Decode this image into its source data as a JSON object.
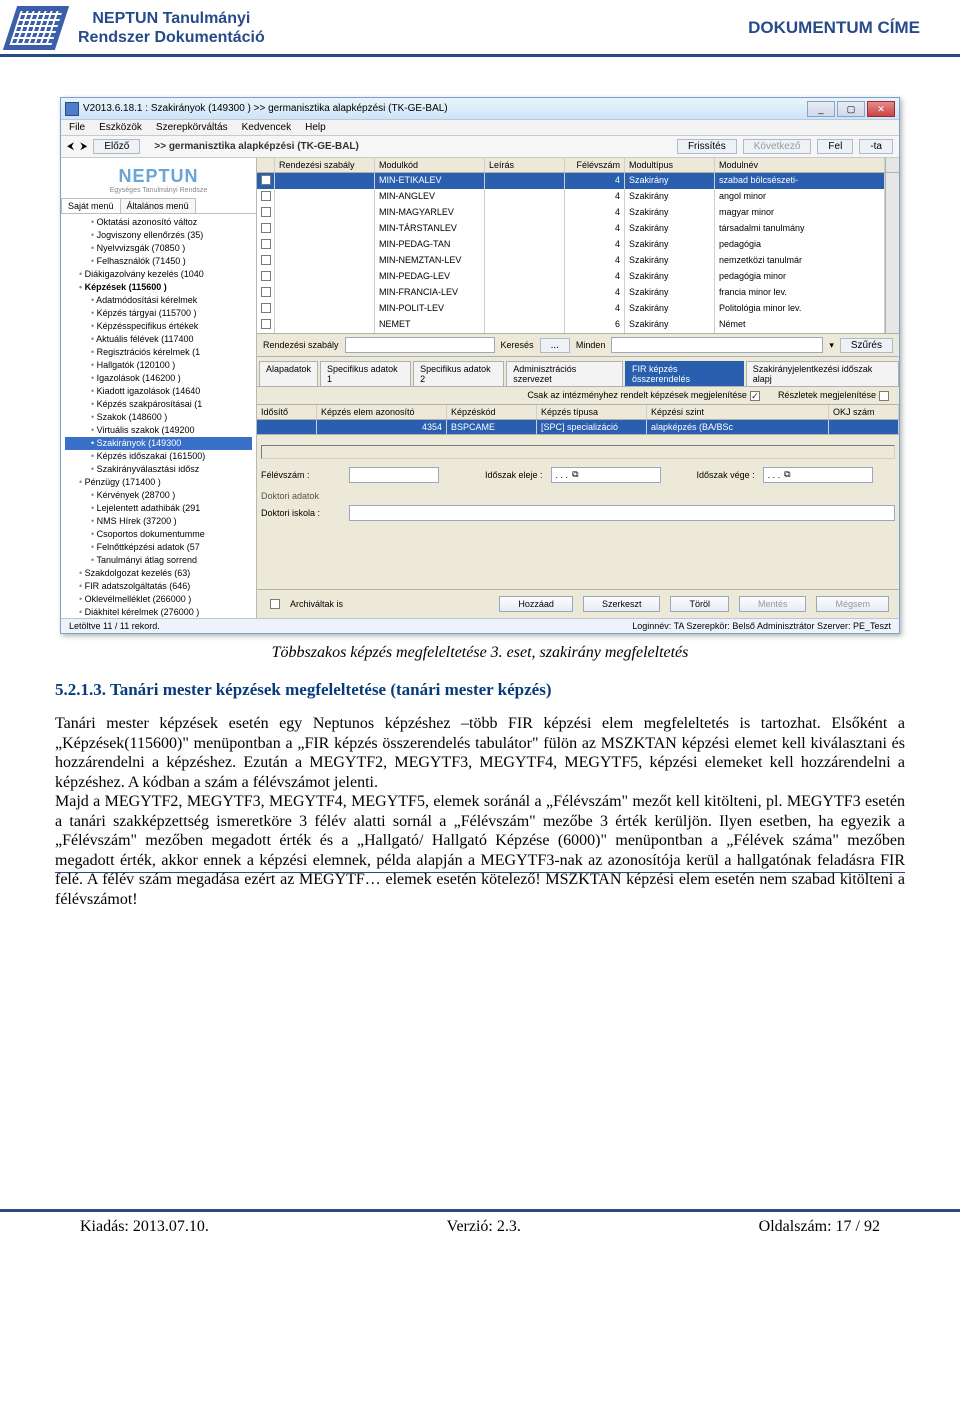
{
  "header": {
    "left_line1": "NEPTUN Tanulmányi",
    "left_line2": "Rendszer Dokumentáció",
    "right": "DOKUMENTUM CÍME"
  },
  "app": {
    "title": "V2013.6.18.1 : Szakirányok (149300 ) >> germanisztika alapképzési (TK-GE-BAL)",
    "menu": [
      "File",
      "Eszközök",
      "Szerepkörváltás",
      "Kedvencek",
      "Help"
    ],
    "nav": {
      "prev": "Előző",
      "crumb": ">> germanisztika alapképzési (TK-GE-BAL)",
      "refresh": "Frissítés",
      "next": "Következő",
      "up": "Fel",
      "pin": "-ta"
    },
    "logo": {
      "name": "NEPTUN",
      "sub": "Egységes Tanulmányi Rendsze"
    },
    "left_tabs": {
      "t1": "Saját menü",
      "t2": "Általános menü"
    },
    "tree": [
      {
        "label": "Oktatási azonosító változ",
        "ind": 2
      },
      {
        "label": "Jogviszony ellenőrzés (35)",
        "ind": 2
      },
      {
        "label": "Nyelvvizsgák (70850 )",
        "ind": 2
      },
      {
        "label": "Felhasználók (71450 )",
        "ind": 2
      },
      {
        "label": "Diákigazolvány kezelés (1040",
        "ind": 1
      },
      {
        "label": "Képzések (115600 )",
        "ind": 1,
        "b": true
      },
      {
        "label": "Adatmódosítási kérelmek",
        "ind": 2
      },
      {
        "label": "Képzés tárgyai (115700 )",
        "ind": 2
      },
      {
        "label": "Képzésspecifikus értékek",
        "ind": 2
      },
      {
        "label": "Aktuális félévek (117400",
        "ind": 2
      },
      {
        "label": "Regisztrációs kérelmek (1",
        "ind": 2
      },
      {
        "label": "Hallgatók (120100 )",
        "ind": 2
      },
      {
        "label": "Igazolások (146200 )",
        "ind": 2
      },
      {
        "label": "Kiadott igazolások (14640",
        "ind": 2
      },
      {
        "label": "Képzés szakpárosításai (1",
        "ind": 2
      },
      {
        "label": "Szakok (148600 )",
        "ind": 2
      },
      {
        "label": "Virtuális szakok (149200",
        "ind": 2
      },
      {
        "label": "Szakirányok (149300",
        "ind": 2,
        "sel": true
      },
      {
        "label": "Képzés időszakai (161500)",
        "ind": 2
      },
      {
        "label": "Szakirányválasztási idősz",
        "ind": 2
      },
      {
        "label": "Pénzügy (171400 )",
        "ind": 1
      },
      {
        "label": "Kérvények (28700 )",
        "ind": 2
      },
      {
        "label": "Lejelentett adathibák (291",
        "ind": 2
      },
      {
        "label": "NMS Hírek (37200 )",
        "ind": 2
      },
      {
        "label": "Csoportos dokumentumme",
        "ind": 2
      },
      {
        "label": "Felnőttképzési adatok (57",
        "ind": 2
      },
      {
        "label": "Tanulmányi átlag sorrend",
        "ind": 2
      },
      {
        "label": "Szakdolgozat kezelés (63)",
        "ind": 1
      },
      {
        "label": "FIR adatszolgáltatás (646)",
        "ind": 1
      },
      {
        "label": "Oklevélmelléklet (266000 )",
        "ind": 1
      },
      {
        "label": "Diákhitel kérelmek (276000 )",
        "ind": 1
      }
    ],
    "grid": {
      "cols": [
        "",
        "Rendezési szabály",
        "Modulkód",
        "Leírás",
        "Félévszám",
        "Modultípus",
        "Modulnév"
      ],
      "rows": [
        {
          "c2": "MIN-ETIKALEV",
          "c3": "",
          "c4": "4",
          "c5": "Szakirány",
          "c6": "szabad bölcsészeti-",
          "sel": true
        },
        {
          "c2": "MIN-ANGLEV",
          "c3": "",
          "c4": "4",
          "c5": "Szakirány",
          "c6": "angol minor"
        },
        {
          "c2": "MIN-MAGYARLEV",
          "c3": "",
          "c4": "4",
          "c5": "Szakirány",
          "c6": "magyar minor"
        },
        {
          "c2": "MIN-TÁRSTANLEV",
          "c3": "",
          "c4": "4",
          "c5": "Szakirány",
          "c6": "társadalmi tanulmány"
        },
        {
          "c2": "MIN-PEDAG-TAN",
          "c3": "",
          "c4": "4",
          "c5": "Szakirány",
          "c6": "pedagógia"
        },
        {
          "c2": "MIN-NEMZTAN-LEV",
          "c3": "",
          "c4": "4",
          "c5": "Szakirány",
          "c6": "nemzetközi tanulmár"
        },
        {
          "c2": "MIN-PEDAG-LEV",
          "c3": "",
          "c4": "4",
          "c5": "Szakirány",
          "c6": "pedagógia minor"
        },
        {
          "c2": "MIN-FRANCIA-LEV",
          "c3": "",
          "c4": "4",
          "c5": "Szakirány",
          "c6": "francia minor lev."
        },
        {
          "c2": "MIN-POLIT-LEV",
          "c3": "",
          "c4": "4",
          "c5": "Szakirány",
          "c6": "Politológia minor lev."
        },
        {
          "c2": "NEMET",
          "c3": "",
          "c4": "6",
          "c5": "Szakirány",
          "c6": "Német"
        }
      ]
    },
    "search": {
      "label": "Rendezési szabály",
      "keres": "Keresés",
      "dots": "...",
      "minden": "Minden",
      "szures": "Szűrés"
    },
    "ltabs": [
      "Alapadatok",
      "Specifikus adatok 1",
      "Specifikus adatok 2",
      "Adminisztrációs szervezet",
      "FIR képzés összerendelés",
      "Szakirányjelentkezési időszak alapj"
    ],
    "ltab_active_index": 4,
    "subopts": {
      "l1": "Csak az intézményhez rendelt képzések megjelenítése",
      "l2": "Részletek megjelenítése"
    },
    "subgrid": {
      "cols": [
        "Idősítő",
        "Képzés elem azonosító",
        "Képzéskód",
        "Képzés típusa",
        "Képzési szint",
        "OKJ szám"
      ],
      "row": {
        "c1": "4354",
        "c2": "BSPCAME",
        "c3": "[SPC] specializáció",
        "c4": "alapképzés (BA/BSc"
      }
    },
    "form": {
      "felevszam": "Félévszám :",
      "ido_eleje": "Időszak eleje :",
      "ido_vege": "Időszak vége :",
      "dot": ". . .",
      "cal_icon": "⧉",
      "doktori": "Doktori adatok",
      "doktori_iskola": "Doktori iskola :"
    },
    "archival": "Archiváltak is",
    "buttons": {
      "hozzaad": "Hozzáad",
      "szerkeszt": "Szerkeszt",
      "torol": "Töröl",
      "mentes": "Mentés",
      "megsem": "Mégsem"
    },
    "status": {
      "left": "Letöltve 11 / 11 rekord.",
      "right": "Loginnév: TA   Szerepkör: Belső Adminisztrátor   Szerver: PE_Teszt"
    }
  },
  "caption": "Többszakos képzés megfeleltetése 3. eset, szakirány megfeleltetés",
  "section_heading": "5.2.1.3. Tanári mester képzések megfeleltetése (tanári mester képzés)",
  "body": "Tanári mester képzések esetén egy Neptunos képzéshez –több FIR képzési elem megfeleltetés is tartozhat. Elsőként a „Képzések(115600)\" menüpontban a „FIR képzés összerendelés tabulátor\" fülön az MSZKTAN képzési elemet kell kiválasztani és hozzárendelni a képzéshez. Ezután a MEGYTF2, MEGYTF3, MEGYTF4, MEGYTF5, képzési elemeket kell hozzárendelni a képzéshez. A kódban a szám a félévszámot jelenti.\nMajd a MEGYTF2, MEGYTF3, MEGYTF4, MEGYTF5, elemek soránál a „Félévszám\" mezőt kell kitölteni, pl. MEGYTF3 esetén a tanári szakképzettség ismeretköre 3 félév alatti sornál a „Félévszám\" mezőbe 3 érték kerüljön. Ilyen esetben, ha egyezik a „Félévszám\" mezőben megadott érték és a „Hallgató/ Hallgató Képzése (6000)\" menüpontban a „Félévek száma\" mezőben megadott érték, akkor ennek a képzési elemnek, példa alapján a  MEGYTF3-nak az azonosítója kerül a hallgatónak feladásra FIR felé. A félév szám megadása ezért az MEGYTF… elemek esetén kötelező! MSZKTAN képzési elem esetén nem szabad kitölteni a félévszámot!",
  "footer": {
    "kiadas": "Kiadás: 2013.07.10.",
    "verzio": "Verzió: 2.3.",
    "oldal": "Oldalszám: 17 / 92"
  }
}
